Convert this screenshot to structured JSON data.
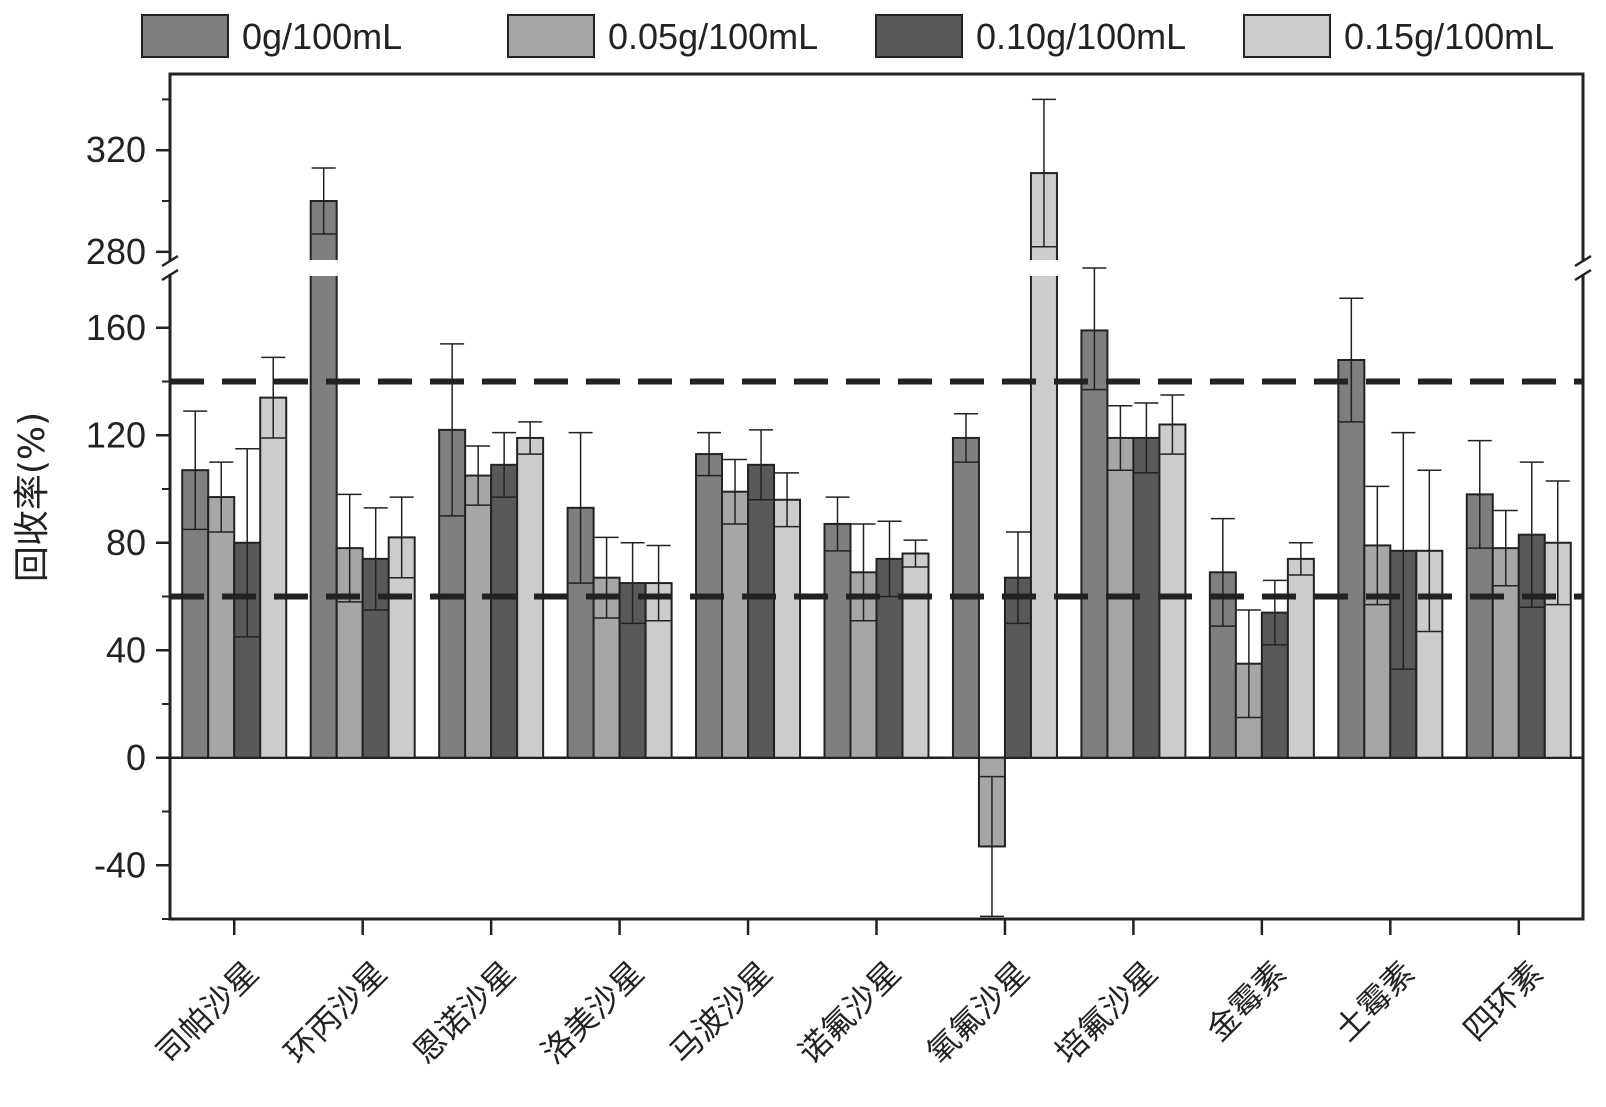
{
  "chart_data": {
    "type": "bar",
    "ylabel": "回收率(%)",
    "y_axis": {
      "broken": true,
      "lower_segment": {
        "range": [
          -60,
          180
        ],
        "ticks": [
          -40,
          0,
          40,
          80,
          120,
          160
        ]
      },
      "upper_segment": {
        "range": [
          276,
          350
        ],
        "ticks": [
          280,
          320
        ]
      }
    },
    "reference_lines": [
      60,
      140
    ],
    "legend_position": "top",
    "categories": [
      "司帕沙星",
      "环丙沙星",
      "恩诺沙星",
      "洛美沙星",
      "马波沙星",
      "诺氟沙星",
      "氧氟沙星",
      "培氟沙星",
      "金霉素",
      "土霉素",
      "四环素"
    ],
    "series": [
      {
        "name": "0g/100mL",
        "color": "#7f7f7f",
        "values": [
          107,
          300,
          122,
          93,
          113,
          87,
          119,
          159,
          69,
          148,
          98
        ],
        "errors": [
          22,
          13,
          32,
          28,
          8,
          10,
          9,
          22,
          20,
          23,
          20
        ]
      },
      {
        "name": "0.05g/100mL",
        "color": "#a6a6a6",
        "values": [
          97,
          78,
          105,
          67,
          99,
          69,
          -33,
          119,
          35,
          79,
          78
        ],
        "errors": [
          13,
          20,
          11,
          15,
          12,
          18,
          26,
          12,
          20,
          22,
          14
        ]
      },
      {
        "name": "0.10g/100mL",
        "color": "#595959",
        "values": [
          80,
          74,
          109,
          65,
          109,
          74,
          67,
          119,
          54,
          77,
          83
        ],
        "errors": [
          35,
          19,
          12,
          15,
          13,
          14,
          17,
          13,
          12,
          44,
          27
        ]
      },
      {
        "name": "0.15g/100mL",
        "color": "#cccccc",
        "values": [
          134,
          82,
          119,
          65,
          96,
          76,
          311,
          124,
          74,
          77,
          80
        ],
        "errors": [
          15,
          15,
          6,
          14,
          10,
          5,
          29,
          11,
          6,
          30,
          23
        ]
      }
    ]
  }
}
